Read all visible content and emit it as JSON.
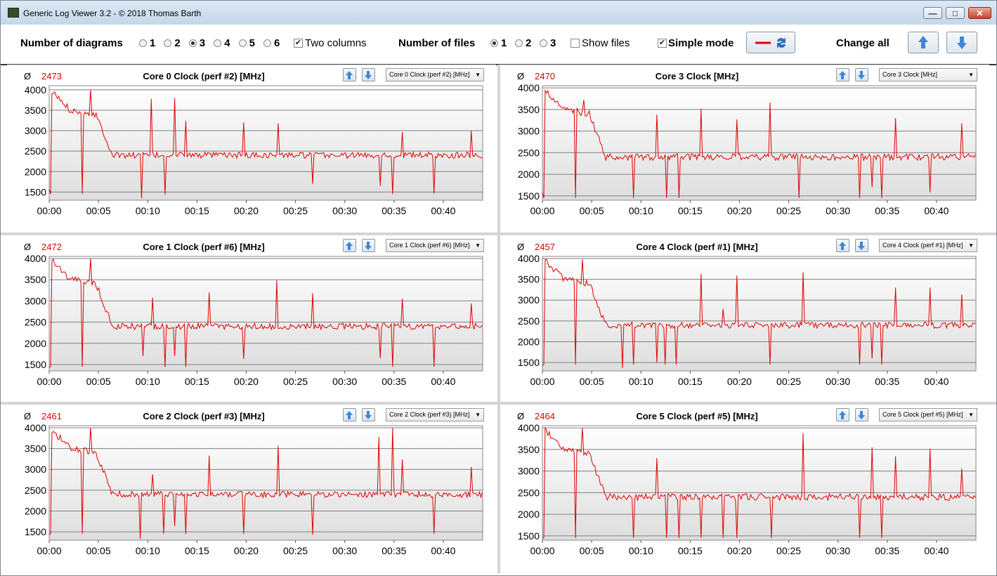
{
  "window": {
    "title": "Generic Log Viewer 3.2 - © 2018 Thomas Barth",
    "min_icon": "minimize-icon",
    "max_icon": "maximize-icon",
    "close_icon": "close-icon"
  },
  "toolbar": {
    "num_diagrams_label": "Number of diagrams",
    "diagram_options": [
      "1",
      "2",
      "3",
      "4",
      "5",
      "6"
    ],
    "diagram_selected": "3",
    "two_columns_label": "Two columns",
    "two_columns_checked": true,
    "num_files_label": "Number of files",
    "file_options": [
      "1",
      "2",
      "3"
    ],
    "file_selected": "1",
    "show_files_label": "Show files",
    "show_files_checked": false,
    "simple_mode_label": "Simple mode",
    "simple_mode_checked": true,
    "change_all_label": "Change all",
    "line_color": "#e00000"
  },
  "x_ticks": [
    "00:00",
    "00:05",
    "00:10",
    "00:15",
    "00:20",
    "00:25",
    "00:30",
    "00:35",
    "00:40"
  ],
  "x_tick_minutes": [
    0,
    5,
    10,
    15,
    20,
    25,
    30,
    35,
    40
  ],
  "x_max_minutes": 44,
  "y_ticks": [
    "4000",
    "3500",
    "3000",
    "2500",
    "2000",
    "1500"
  ],
  "y_tick_values": [
    4000,
    3500,
    3000,
    2500,
    2000,
    1500
  ],
  "avg_symbol": "Ø",
  "panels": [
    {
      "title": "Core 0 Clock (perf #2) [MHz]",
      "avg": "2473",
      "combo": "Core 0 Clock (perf #2) [MHz]",
      "ylim": [
        1300,
        4100
      ],
      "chart_data": {
        "type": "line",
        "x_unit": "minutes",
        "y_unit": "MHz",
        "ylim": [
          1300,
          4100
        ],
        "spikes_up": [
          [
            4.2,
            4000
          ],
          [
            10.4,
            3780
          ],
          [
            12.7,
            3800
          ],
          [
            13.8,
            3240
          ],
          [
            19.7,
            3200
          ],
          [
            23.2,
            3180
          ],
          [
            35.8,
            2970
          ],
          [
            42.9,
            3000
          ]
        ],
        "spikes_down": [
          [
            0.15,
            1450
          ],
          [
            3.4,
            1450
          ],
          [
            9.4,
            1350
          ],
          [
            11.7,
            1440
          ],
          [
            26.8,
            1700
          ],
          [
            33.6,
            1650
          ],
          [
            34.9,
            1450
          ],
          [
            39.1,
            1460
          ]
        ]
      }
    },
    {
      "title": "Core 3 Clock [MHz]",
      "avg": "2470",
      "combo": "Core 3 Clock [MHz]",
      "ylim": [
        1400,
        4050
      ],
      "chart_data": {
        "type": "line",
        "x_unit": "minutes",
        "y_unit": "MHz",
        "ylim": [
          1400,
          4050
        ],
        "spikes_up": [
          [
            4.2,
            3720
          ],
          [
            11.6,
            3380
          ],
          [
            16.1,
            3520
          ],
          [
            19.7,
            3270
          ],
          [
            23.1,
            3660
          ],
          [
            35.8,
            3300
          ],
          [
            42.5,
            3180
          ]
        ],
        "spikes_down": [
          [
            0.15,
            1450
          ],
          [
            3.4,
            1450
          ],
          [
            9.3,
            1450
          ],
          [
            12.6,
            1450
          ],
          [
            13.8,
            1450
          ],
          [
            26.1,
            1450
          ],
          [
            32.2,
            1450
          ],
          [
            33.4,
            1700
          ],
          [
            34.5,
            1450
          ],
          [
            39.3,
            1580
          ]
        ]
      }
    },
    {
      "title": "Core 1 Clock (perf #6) [MHz]",
      "avg": "2472",
      "combo": "Core 1 Clock (perf #6) [MHz]",
      "ylim": [
        1350,
        4050
      ],
      "chart_data": {
        "type": "line",
        "x_unit": "minutes",
        "y_unit": "MHz",
        "ylim": [
          1350,
          4050
        ],
        "spikes_up": [
          [
            4.2,
            4000
          ],
          [
            10.5,
            3080
          ],
          [
            16.3,
            3200
          ],
          [
            23.1,
            3490
          ],
          [
            26.7,
            3180
          ],
          [
            35.8,
            3050
          ],
          [
            42.9,
            2940
          ]
        ],
        "spikes_down": [
          [
            0.15,
            1450
          ],
          [
            3.4,
            1450
          ],
          [
            9.5,
            1700
          ],
          [
            11.7,
            1440
          ],
          [
            12.8,
            1700
          ],
          [
            13.8,
            1440
          ],
          [
            19.7,
            1630
          ],
          [
            33.6,
            1650
          ],
          [
            34.9,
            1450
          ],
          [
            39.1,
            1450
          ]
        ]
      }
    },
    {
      "title": "Core 4 Clock (perf #1) [MHz]",
      "avg": "2457",
      "combo": "Core 4 Clock (perf #1) [MHz]",
      "ylim": [
        1300,
        4050
      ],
      "chart_data": {
        "type": "line",
        "x_unit": "minutes",
        "y_unit": "MHz",
        "ylim": [
          1300,
          4050
        ],
        "spikes_up": [
          [
            4.0,
            3980
          ],
          [
            16.1,
            3630
          ],
          [
            18.3,
            2790
          ],
          [
            19.7,
            3590
          ],
          [
            26.5,
            3670
          ],
          [
            35.8,
            3300
          ],
          [
            39.4,
            3300
          ],
          [
            42.5,
            3140
          ]
        ],
        "spikes_down": [
          [
            0.15,
            1450
          ],
          [
            3.3,
            1450
          ],
          [
            8.1,
            1370
          ],
          [
            9.3,
            1450
          ],
          [
            11.6,
            1500
          ],
          [
            12.4,
            1450
          ],
          [
            13.6,
            1450
          ],
          [
            23.1,
            1450
          ],
          [
            32.2,
            1450
          ],
          [
            33.4,
            1600
          ],
          [
            34.5,
            1450
          ]
        ]
      }
    },
    {
      "title": "Core 2 Clock (perf #3) [MHz]",
      "avg": "2461",
      "combo": "Core 2 Clock (perf #3) [MHz]",
      "ylim": [
        1300,
        4050
      ],
      "chart_data": {
        "type": "line",
        "x_unit": "minutes",
        "y_unit": "MHz",
        "ylim": [
          1300,
          4050
        ],
        "spikes_up": [
          [
            4.2,
            4000
          ],
          [
            10.5,
            2880
          ],
          [
            16.2,
            3330
          ],
          [
            23.2,
            3570
          ],
          [
            33.5,
            3780
          ],
          [
            34.9,
            4000
          ],
          [
            35.8,
            3240
          ],
          [
            42.9,
            3060
          ]
        ],
        "spikes_down": [
          [
            0.15,
            1450
          ],
          [
            3.4,
            1450
          ],
          [
            9.3,
            1330
          ],
          [
            11.6,
            1450
          ],
          [
            12.8,
            1640
          ],
          [
            13.8,
            1450
          ],
          [
            19.7,
            1450
          ],
          [
            26.8,
            1430
          ],
          [
            39.1,
            1450
          ]
        ]
      }
    },
    {
      "title": "Core 5 Clock (perf #5) [MHz]",
      "avg": "2464",
      "combo": "Core 5 Clock (perf #5) [MHz]",
      "ylim": [
        1400,
        4050
      ],
      "chart_data": {
        "type": "line",
        "x_unit": "minutes",
        "y_unit": "MHz",
        "ylim": [
          1400,
          4050
        ],
        "spikes_up": [
          [
            4.1,
            4000
          ],
          [
            11.6,
            3300
          ],
          [
            26.5,
            3880
          ],
          [
            33.5,
            3550
          ],
          [
            35.8,
            3340
          ],
          [
            39.3,
            3520
          ],
          [
            42.5,
            3060
          ]
        ],
        "spikes_down": [
          [
            0.15,
            1450
          ],
          [
            3.4,
            1450
          ],
          [
            9.3,
            1450
          ],
          [
            12.6,
            1450
          ],
          [
            13.8,
            1450
          ],
          [
            16.1,
            1450
          ],
          [
            18.3,
            1450
          ],
          [
            19.7,
            1450
          ],
          [
            23.2,
            1450
          ],
          [
            32.2,
            1450
          ],
          [
            34.5,
            1450
          ]
        ]
      }
    }
  ]
}
